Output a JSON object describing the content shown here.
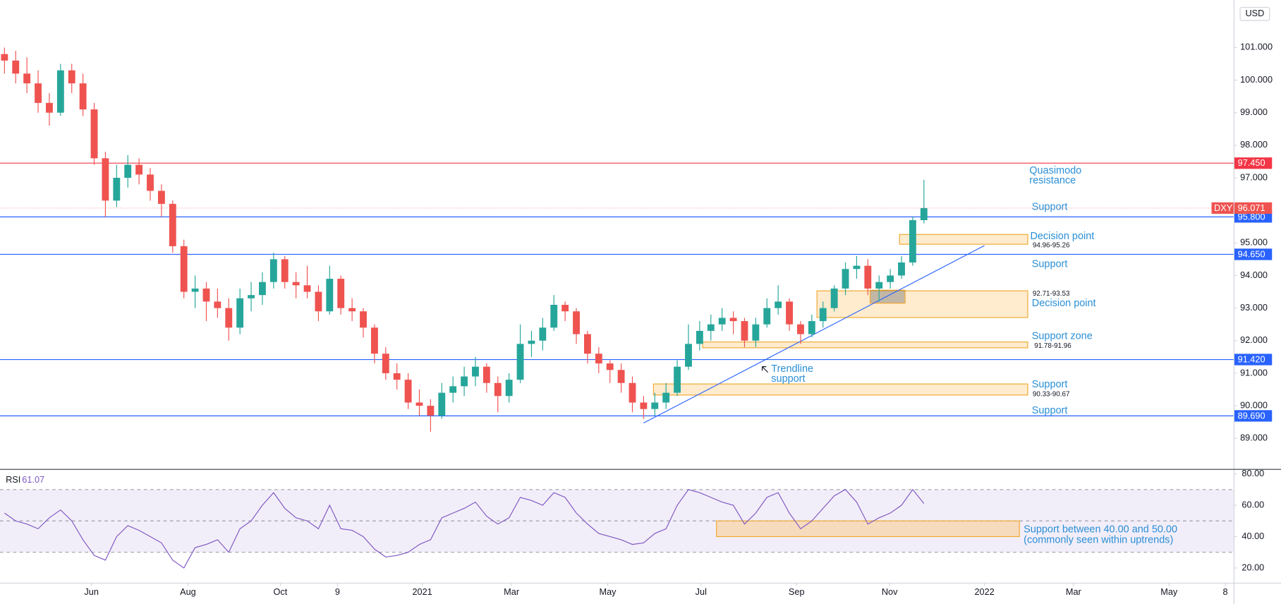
{
  "chart_data": {
    "type": "candlestick",
    "symbol": "DXY",
    "currency": "USD",
    "up_color": "#26a69a",
    "down_color": "#ef5350",
    "xlim": [
      0,
      550.1
    ],
    "xticks": [
      {
        "value": 40.8,
        "label": "Jun"
      },
      {
        "value": 83.8,
        "label": "Aug"
      },
      {
        "value": 125,
        "label": "Oct"
      },
      {
        "value": 150.5,
        "label": "9"
      },
      {
        "value": 188.3,
        "label": "2021"
      },
      {
        "value": 228.1,
        "label": "Mar"
      },
      {
        "value": 271,
        "label": "May"
      },
      {
        "value": 312.6,
        "label": "Jul"
      },
      {
        "value": 355.2,
        "label": "Sep"
      },
      {
        "value": 396.7,
        "label": "Nov"
      },
      {
        "value": 439,
        "label": "2022"
      },
      {
        "value": 478.7,
        "label": "Mar"
      },
      {
        "value": 521.3,
        "label": "May"
      },
      {
        "value": 546.4,
        "label": "8"
      }
    ],
    "ylim": [
      88.06,
      102.46
    ],
    "yticks": [
      {
        "value": 89,
        "label": "89.000"
      },
      {
        "value": 90,
        "label": "90.000"
      },
      {
        "value": 91,
        "label": "91.000"
      },
      {
        "value": 92,
        "label": "92.000"
      },
      {
        "value": 93,
        "label": "93.000"
      },
      {
        "value": 94,
        "label": "94.000"
      },
      {
        "value": 95,
        "label": "95.000"
      },
      {
        "value": 96,
        "label": "96.000"
      },
      {
        "value": 97,
        "label": "97.000"
      },
      {
        "value": 98,
        "label": "98.000"
      },
      {
        "value": 99,
        "label": "99.000"
      },
      {
        "value": 100,
        "label": "100.000"
      },
      {
        "value": 101,
        "label": "101.000"
      }
    ],
    "x": [
      2,
      7,
      12,
      17,
      22,
      27,
      32,
      37,
      42,
      47,
      52,
      57,
      62,
      67,
      72,
      77,
      82,
      87,
      92,
      97,
      102,
      107,
      112,
      117,
      122,
      127,
      132,
      137,
      142,
      147,
      152,
      157,
      162,
      167,
      172,
      177,
      182,
      187,
      192,
      197,
      202,
      207,
      212,
      217,
      222,
      227,
      232,
      237,
      242,
      247,
      252,
      257,
      262,
      267,
      272,
      277,
      282,
      287,
      292,
      297,
      302,
      307,
      312,
      317,
      322,
      327,
      332,
      337,
      342,
      347,
      352,
      357,
      362,
      367,
      372,
      377,
      382,
      387,
      392,
      397,
      402,
      407,
      412
    ],
    "candles": [
      [
        100.8,
        101.0,
        100.2,
        100.6
      ],
      [
        100.6,
        100.9,
        99.9,
        100.2
      ],
      [
        100.2,
        100.7,
        99.6,
        99.9
      ],
      [
        99.9,
        100.3,
        99.0,
        99.3
      ],
      [
        99.3,
        99.6,
        98.6,
        99.0
      ],
      [
        99.0,
        100.5,
        98.9,
        100.3
      ],
      [
        100.3,
        100.5,
        99.6,
        99.9
      ],
      [
        99.9,
        100.2,
        98.9,
        99.1
      ],
      [
        99.1,
        99.3,
        97.4,
        97.6
      ],
      [
        97.6,
        97.8,
        95.8,
        96.3
      ],
      [
        96.3,
        97.4,
        96.1,
        97.0
      ],
      [
        97.0,
        97.7,
        96.7,
        97.4
      ],
      [
        97.4,
        97.6,
        96.8,
        97.1
      ],
      [
        97.1,
        97.3,
        96.3,
        96.6
      ],
      [
        96.6,
        96.8,
        95.8,
        96.2
      ],
      [
        96.2,
        96.3,
        94.7,
        94.9
      ],
      [
        94.9,
        95.1,
        93.3,
        93.5
      ],
      [
        93.5,
        94.0,
        93.0,
        93.6
      ],
      [
        93.6,
        93.8,
        92.6,
        93.2
      ],
      [
        93.2,
        93.6,
        92.7,
        93.0
      ],
      [
        93.0,
        93.3,
        92.0,
        92.4
      ],
      [
        92.4,
        93.6,
        92.2,
        93.3
      ],
      [
        93.3,
        93.8,
        92.9,
        93.4
      ],
      [
        93.4,
        94.1,
        93.1,
        93.8
      ],
      [
        93.8,
        94.7,
        93.6,
        94.5
      ],
      [
        94.5,
        94.6,
        93.6,
        93.8
      ],
      [
        93.8,
        94.1,
        93.3,
        93.7
      ],
      [
        93.7,
        94.3,
        93.3,
        93.5
      ],
      [
        93.5,
        93.7,
        92.6,
        92.9
      ],
      [
        92.9,
        94.3,
        92.8,
        93.9
      ],
      [
        93.9,
        94.0,
        92.8,
        93.0
      ],
      [
        93.0,
        93.3,
        92.6,
        92.9
      ],
      [
        92.9,
        93.0,
        92.1,
        92.4
      ],
      [
        92.4,
        92.5,
        91.3,
        91.6
      ],
      [
        91.6,
        91.8,
        90.8,
        91.0
      ],
      [
        91.0,
        91.3,
        90.5,
        90.8
      ],
      [
        90.8,
        91.0,
        89.9,
        90.1
      ],
      [
        90.1,
        90.5,
        89.7,
        90.0
      ],
      [
        90.0,
        90.2,
        89.2,
        89.7
      ],
      [
        89.7,
        90.7,
        89.6,
        90.4
      ],
      [
        90.4,
        90.9,
        90.1,
        90.6
      ],
      [
        90.6,
        91.2,
        90.3,
        90.9
      ],
      [
        90.9,
        91.5,
        90.6,
        91.2
      ],
      [
        91.2,
        91.3,
        90.4,
        90.7
      ],
      [
        90.7,
        90.9,
        89.8,
        90.3
      ],
      [
        90.3,
        91.0,
        90.1,
        90.8
      ],
      [
        90.8,
        92.5,
        90.7,
        91.9
      ],
      [
        91.9,
        92.3,
        91.5,
        92.0
      ],
      [
        92.0,
        92.7,
        91.7,
        92.4
      ],
      [
        92.4,
        93.4,
        92.3,
        93.1
      ],
      [
        93.1,
        93.2,
        92.6,
        92.9
      ],
      [
        92.9,
        93.0,
        91.9,
        92.2
      ],
      [
        92.2,
        92.3,
        91.3,
        91.6
      ],
      [
        91.6,
        91.8,
        91.0,
        91.3
      ],
      [
        91.3,
        91.4,
        90.7,
        91.1
      ],
      [
        91.1,
        91.3,
        90.4,
        90.7
      ],
      [
        90.7,
        90.9,
        89.8,
        90.1
      ],
      [
        90.1,
        90.3,
        89.6,
        89.9
      ],
      [
        89.9,
        90.4,
        89.7,
        90.1
      ],
      [
        90.1,
        90.7,
        89.9,
        90.4
      ],
      [
        90.4,
        91.4,
        90.3,
        91.2
      ],
      [
        91.2,
        92.5,
        91.1,
        91.9
      ],
      [
        91.9,
        92.6,
        91.7,
        92.3
      ],
      [
        92.3,
        92.8,
        92.0,
        92.5
      ],
      [
        92.5,
        93.0,
        92.3,
        92.7
      ],
      [
        92.7,
        92.9,
        92.2,
        92.6
      ],
      [
        92.6,
        92.7,
        91.8,
        92.0
      ],
      [
        92.0,
        92.7,
        91.8,
        92.5
      ],
      [
        92.5,
        93.3,
        92.4,
        93.0
      ],
      [
        93.0,
        93.7,
        92.8,
        93.2
      ],
      [
        93.2,
        93.3,
        92.3,
        92.5
      ],
      [
        92.5,
        92.6,
        91.9,
        92.2
      ],
      [
        92.2,
        92.8,
        92.1,
        92.6
      ],
      [
        92.6,
        93.2,
        92.4,
        93.0
      ],
      [
        93.0,
        93.7,
        92.9,
        93.6
      ],
      [
        93.6,
        94.4,
        93.4,
        94.2
      ],
      [
        94.2,
        94.6,
        93.9,
        94.3
      ],
      [
        94.3,
        94.5,
        93.4,
        93.6
      ],
      [
        93.6,
        94.0,
        93.2,
        93.8
      ],
      [
        93.8,
        94.2,
        93.6,
        94.0
      ],
      [
        94.0,
        94.6,
        93.9,
        94.4
      ],
      [
        94.4,
        95.8,
        94.3,
        95.7
      ],
      [
        95.7,
        96.94,
        95.6,
        96.071
      ]
    ],
    "last_price": 96.071,
    "hlines": [
      {
        "value": 97.45,
        "label": "97.450",
        "color": "#f23645"
      },
      {
        "value": 95.8,
        "label": "95.800",
        "color": "#2962ff"
      },
      {
        "value": 94.65,
        "label": "94.650",
        "color": "#2962ff"
      },
      {
        "value": 91.42,
        "label": "91.420",
        "color": "#2962ff"
      },
      {
        "value": 89.69,
        "label": "89.690",
        "color": "#2962ff"
      }
    ],
    "zones": [
      {
        "low": 94.96,
        "high": 95.26,
        "x": [
          401.1,
          458.3
        ],
        "label": "94.96-95.26"
      },
      {
        "low": 92.71,
        "high": 93.53,
        "x": [
          364.3,
          458.3
        ],
        "label": "92.71-93.53"
      },
      {
        "low": 91.78,
        "high": 91.96,
        "x": [
          313.3,
          458.3
        ],
        "label": "91.78-91.96"
      },
      {
        "low": 90.33,
        "high": 90.67,
        "x": [
          291.4,
          458.3
        ],
        "label": "90.33-90.67"
      }
    ],
    "overlap": {
      "low": 93.15,
      "high": 93.55,
      "x": [
        388,
        403.6
      ]
    },
    "trendline": {
      "x": [
        287,
        439
      ],
      "y": [
        89.47,
        94.92
      ]
    },
    "annotations": [
      [
        "Quasimodo",
        "resistance"
      ],
      [
        "Support"
      ],
      [
        "Decision point"
      ],
      [
        "Support"
      ],
      [
        "Decision point"
      ],
      [
        "Support zone"
      ],
      [
        "Trendline",
        "support"
      ],
      [
        "Support"
      ],
      [
        "Support"
      ],
      [
        "Support between 40.00 and 50.00",
        "(commonly seen within uptrends)"
      ]
    ],
    "rsi": {
      "name": "RSI",
      "color": "#7e57c2",
      "ylim": [
        10.6,
        82.6
      ],
      "yticks": [
        {
          "value": 20,
          "label": "20.00"
        },
        {
          "value": 40,
          "label": "40.00"
        },
        {
          "value": 60,
          "label": "60.00"
        },
        {
          "value": 80,
          "label": "80.00"
        }
      ],
      "levels": [
        30,
        50,
        70
      ],
      "band": [
        30,
        70
      ],
      "zone": {
        "low": 40,
        "high": 50,
        "x": [
          319.5,
          454.6
        ]
      },
      "values": [
        55,
        50,
        48,
        45,
        52,
        57,
        50,
        38,
        28,
        25,
        40,
        47,
        44,
        40,
        36,
        25,
        20,
        33,
        35,
        38,
        30,
        45,
        50,
        60,
        68,
        58,
        52,
        50,
        45,
        60,
        45,
        44,
        40,
        32,
        27,
        28,
        30,
        35,
        38,
        52,
        55,
        58,
        62,
        53,
        48,
        52,
        65,
        63,
        60,
        68,
        65,
        55,
        48,
        42,
        40,
        38,
        35,
        36,
        42,
        45,
        60,
        70,
        68,
        65,
        62,
        60,
        48,
        55,
        65,
        68,
        55,
        45,
        50,
        58,
        66,
        70,
        62,
        48,
        52,
        55,
        60,
        70,
        61.07
      ]
    }
  }
}
